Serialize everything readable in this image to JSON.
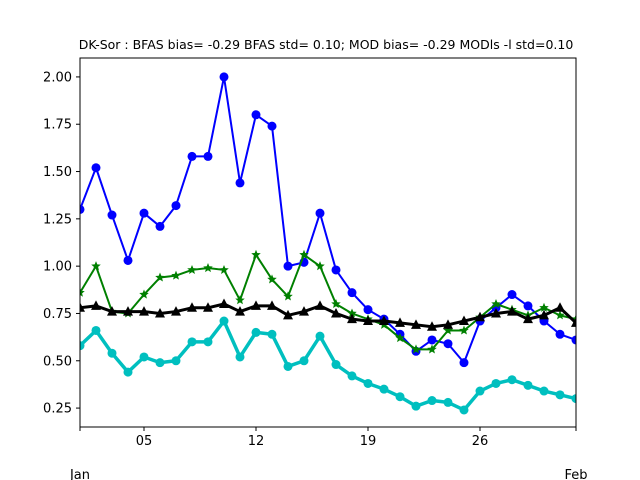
{
  "chart_data": {
    "type": "line",
    "title": "DK-Sor   : BFAS bias= -0.29 BFAS std= 0.10; MOD bias= -0.29 MODls -l std=0.10",
    "xlabel": "",
    "ylabel": "",
    "x": [
      1,
      2,
      3,
      4,
      5,
      6,
      7,
      8,
      9,
      10,
      11,
      12,
      13,
      14,
      15,
      16,
      17,
      18,
      19,
      20,
      21,
      22,
      23,
      24,
      25,
      26,
      27,
      28,
      29,
      30,
      31,
      32
    ],
    "xlim": [
      1,
      32
    ],
    "ylim": [
      0.15,
      2.1
    ],
    "x_ticks": [
      {
        "value": 5,
        "label": "05"
      },
      {
        "value": 12,
        "label": "12"
      },
      {
        "value": 19,
        "label": "19"
      },
      {
        "value": 26,
        "label": "26"
      }
    ],
    "x_month_labels": [
      {
        "value": 1,
        "label": "Jan"
      },
      {
        "value": 32,
        "label": "Feb"
      }
    ],
    "y_ticks": [
      "0.25",
      "0.50",
      "0.75",
      "1.00",
      "1.25",
      "1.50",
      "1.75",
      "2.00"
    ],
    "grid": false,
    "series": [
      {
        "color": "#0000ff",
        "marker": "circle",
        "line_width": 2,
        "values": [
          1.3,
          1.52,
          1.27,
          1.03,
          1.28,
          1.21,
          1.32,
          1.58,
          1.58,
          2.0,
          1.44,
          1.8,
          1.74,
          1.0,
          1.02,
          1.28,
          0.98,
          0.86,
          0.77,
          0.72,
          0.64,
          0.55,
          0.61,
          0.59,
          0.49,
          0.71,
          0.78,
          0.85,
          0.79,
          0.71,
          0.64,
          0.61
        ]
      },
      {
        "color": "#008000",
        "marker": "star",
        "line_width": 2,
        "values": [
          0.86,
          1.0,
          0.76,
          0.75,
          0.85,
          0.94,
          0.95,
          0.98,
          0.99,
          0.98,
          0.82,
          1.06,
          0.93,
          0.84,
          1.06,
          1.0,
          0.8,
          0.75,
          0.72,
          0.69,
          0.62,
          0.56,
          0.56,
          0.66,
          0.66,
          0.73,
          0.8,
          0.77,
          0.74,
          0.78,
          0.74,
          0.72
        ]
      },
      {
        "color": "#000000",
        "marker": "triangle",
        "line_width": 3,
        "values": [
          0.78,
          0.79,
          0.76,
          0.76,
          0.76,
          0.75,
          0.76,
          0.78,
          0.78,
          0.8,
          0.76,
          0.79,
          0.79,
          0.74,
          0.76,
          0.79,
          0.75,
          0.72,
          0.71,
          0.71,
          0.7,
          0.69,
          0.68,
          0.69,
          0.71,
          0.73,
          0.75,
          0.76,
          0.72,
          0.74,
          0.78,
          0.7
        ]
      },
      {
        "color": "#00bfbf",
        "marker": "circle",
        "line_width": 3.5,
        "values": [
          0.58,
          0.66,
          0.54,
          0.44,
          0.52,
          0.49,
          0.5,
          0.6,
          0.6,
          0.71,
          0.52,
          0.65,
          0.64,
          0.47,
          0.5,
          0.63,
          0.48,
          0.42,
          0.38,
          0.35,
          0.31,
          0.26,
          0.29,
          0.28,
          0.24,
          0.34,
          0.38,
          0.4,
          0.37,
          0.34,
          0.32,
          0.3
        ]
      }
    ]
  }
}
